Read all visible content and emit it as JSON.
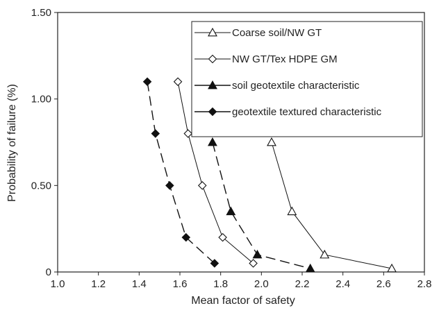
{
  "chart_data": {
    "type": "line",
    "title": "",
    "xlabel": "Mean factor of safety",
    "ylabel": "Probability of failure (%)",
    "xlim": [
      1.0,
      2.8
    ],
    "ylim": [
      0,
      1.5
    ],
    "x_ticks": [
      "1.0",
      "1.2",
      "1.4",
      "1.6",
      "1.8",
      "2.0",
      "2.2",
      "2.4",
      "2.6",
      "2.8"
    ],
    "y_ticks": [
      "0",
      "0.50",
      "1.00",
      "1.50"
    ],
    "grid": false,
    "legend_position": "top-right",
    "series": [
      {
        "name": "Coarse soil/NW GT",
        "marker": "triangle-open",
        "line": "solid-thin",
        "x": [
          2.05,
          2.15,
          2.31,
          2.64
        ],
        "y": [
          0.75,
          0.35,
          0.1,
          0.02
        ]
      },
      {
        "name": "NW GT/Tex HDPE GM",
        "marker": "diamond-open",
        "line": "solid-thin",
        "x": [
          1.59,
          1.64,
          1.71,
          1.81,
          1.96
        ],
        "y": [
          1.1,
          0.8,
          0.5,
          0.2,
          0.05
        ]
      },
      {
        "name": "soil geotextile characteristic",
        "marker": "triangle-filled",
        "line": "dashed",
        "x": [
          1.76,
          1.85,
          1.98,
          2.24
        ],
        "y": [
          0.75,
          0.35,
          0.1,
          0.02
        ]
      },
      {
        "name": "geotextile textured characteristic",
        "marker": "diamond-filled",
        "line": "dashed",
        "x": [
          1.44,
          1.48,
          1.55,
          1.63,
          1.77
        ],
        "y": [
          1.1,
          0.8,
          0.5,
          0.2,
          0.05
        ]
      }
    ]
  }
}
